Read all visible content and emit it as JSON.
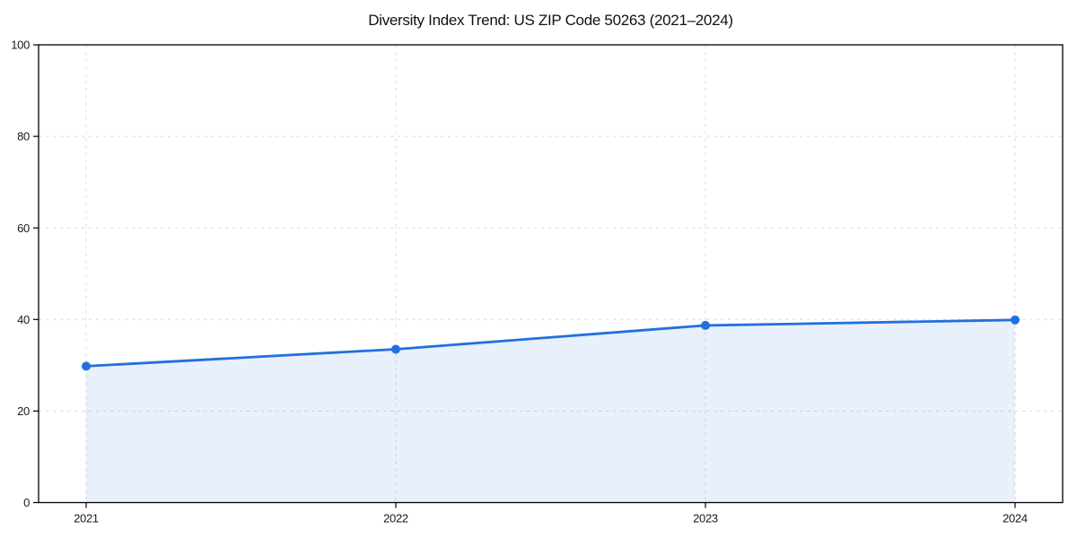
{
  "chart_data": {
    "type": "area",
    "title": "Diversity Index Trend: US ZIP Code 50263 (2021–2024)",
    "categories": [
      "2021",
      "2022",
      "2023",
      "2024"
    ],
    "series": [
      {
        "name": "Diversity Index",
        "values": [
          29.8,
          33.5,
          38.7,
          39.9
        ]
      }
    ],
    "xlabel": "",
    "ylabel": "",
    "ylim": [
      0,
      100
    ],
    "yticks": [
      0,
      20,
      40,
      60,
      80,
      100
    ],
    "grid": true,
    "grid_style": "dashed",
    "legend": false,
    "marker": "circle",
    "colors": {
      "line": "#2170e0",
      "marker": "#2170e0",
      "fill": "#2170e0",
      "fill_opacity": 0.1,
      "grid": "#dcdcdc",
      "axis": "#000000",
      "tick_text": "#1a1a1a",
      "background": "#ffffff"
    }
  }
}
